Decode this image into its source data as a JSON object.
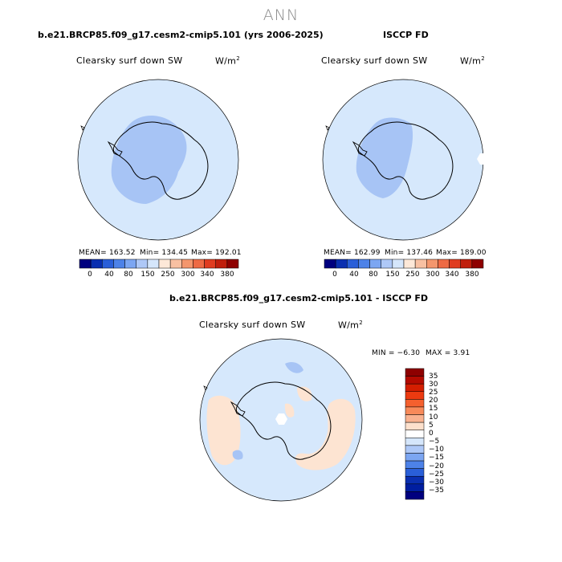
{
  "season": "ANN",
  "panel_left": {
    "title": "b.e21.BRCP85.f09_g17.cesm2-cmip5.101 (yrs 2006-2025)",
    "variable": "Clearsky surf down SW",
    "units": "W/m",
    "units_sup": "2",
    "mean": "MEAN= 163.52",
    "min": "Min= 134.45",
    "max": "Max= 192.01"
  },
  "panel_right": {
    "title": "ISCCP FD",
    "variable": "Clearsky surf down SW",
    "units": "W/m",
    "units_sup": "2",
    "mean": "MEAN= 162.99",
    "min": "Min= 137.46",
    "max": "Max= 189.00"
  },
  "panel_diff": {
    "title": "b.e21.BRCP85.f09_g17.cesm2-cmip5.101 - ISCCP FD",
    "variable": "Clearsky surf down SW",
    "units": "W/m",
    "units_sup": "2",
    "min": "MIN =  −6.30",
    "max": "MAX =   3.91"
  },
  "colorbar_top": {
    "labels": [
      "0",
      "40",
      "80",
      "150",
      "250",
      "300",
      "340",
      "380"
    ],
    "colors": [
      "#00007f",
      "#0a2fb0",
      "#2a5fd8",
      "#4d82e8",
      "#7ca6f2",
      "#aec8f7",
      "#d5e6fb",
      "#fde8d8",
      "#f8c0a2",
      "#f4966d",
      "#ee6a44",
      "#e03c20",
      "#c01e0c",
      "#8e0000"
    ]
  },
  "colorbar_diff": {
    "labels": [
      "35",
      "30",
      "25",
      "20",
      "15",
      "10",
      "5",
      "0",
      "−5",
      "−10",
      "−15",
      "−20",
      "−25",
      "−30",
      "−35"
    ],
    "colors": [
      "#8e0000",
      "#b40a00",
      "#d41e00",
      "#ec3a10",
      "#f5602e",
      "#f88a5a",
      "#f9b290",
      "#fde0cc",
      "#ffffff",
      "#d5e6fb",
      "#aec8f7",
      "#7ca6f2",
      "#4d82e8",
      "#2a5fd8",
      "#0a2fb0",
      "#001ea0",
      "#00007f"
    ]
  },
  "map_colors": {
    "ocean": "#d6e8fc",
    "ice_mid": "#a7c4f5",
    "ice_light": "#d6e8fc",
    "warm": "#fde4d2",
    "missing": "#ffffff"
  }
}
